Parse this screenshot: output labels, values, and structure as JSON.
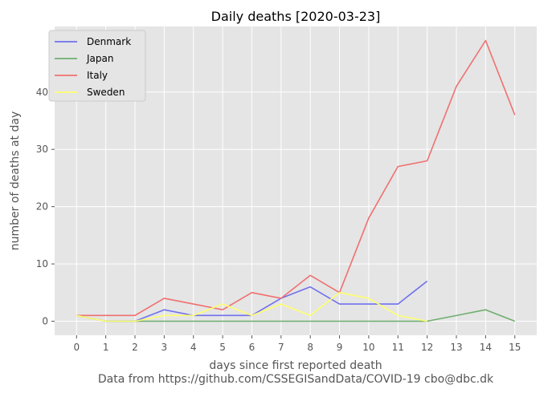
{
  "chart_data": {
    "type": "line",
    "title": "Daily deaths [2020-03-23]",
    "xlabel": "days since first reported death",
    "ylabel": "number of deaths at day",
    "source_note": "Data from https://github.com/CSSEGISandData/COVID-19 cbo@dbc.dk",
    "xlim": [
      -0.75,
      15.75
    ],
    "ylim": [
      -2.45,
      51.45
    ],
    "x_ticks": [
      0,
      1,
      2,
      3,
      4,
      5,
      6,
      7,
      8,
      9,
      10,
      11,
      12,
      13,
      14,
      15
    ],
    "y_ticks": [
      0,
      10,
      20,
      30,
      40
    ],
    "grid": true,
    "legend_position": "top-left",
    "background": "#e5e5e5",
    "series": [
      {
        "name": "Denmark",
        "color": "#7070ee",
        "x": [
          0,
          1,
          2,
          3,
          4,
          5,
          6,
          7,
          8,
          9,
          10,
          11,
          12
        ],
        "values": [
          1,
          0,
          0,
          2,
          1,
          1,
          1,
          4,
          6,
          3,
          3,
          3,
          7
        ]
      },
      {
        "name": "Japan",
        "color": "#6fae6f",
        "x": [
          0,
          1,
          2,
          3,
          4,
          5,
          6,
          7,
          8,
          9,
          10,
          11,
          12,
          13,
          14,
          15
        ],
        "values": [
          1,
          0,
          0,
          0,
          0,
          0,
          0,
          0,
          0,
          0,
          0,
          0,
          0,
          1,
          2,
          0
        ]
      },
      {
        "name": "Italy",
        "color": "#f07070",
        "x": [
          0,
          1,
          2,
          3,
          4,
          5,
          6,
          7,
          8,
          9,
          10,
          11,
          12,
          13,
          14,
          15
        ],
        "values": [
          1,
          1,
          1,
          4,
          3,
          2,
          5,
          4,
          8,
          5,
          18,
          27,
          28,
          41,
          49,
          36
        ]
      },
      {
        "name": "Sweden",
        "color": "#ffff6e",
        "x": [
          0,
          1,
          2,
          3,
          4,
          5,
          6,
          7,
          8,
          9,
          10,
          11,
          12
        ],
        "values": [
          1,
          0,
          0,
          1,
          1,
          3,
          1,
          3,
          1,
          5,
          4,
          1,
          0
        ]
      }
    ]
  }
}
